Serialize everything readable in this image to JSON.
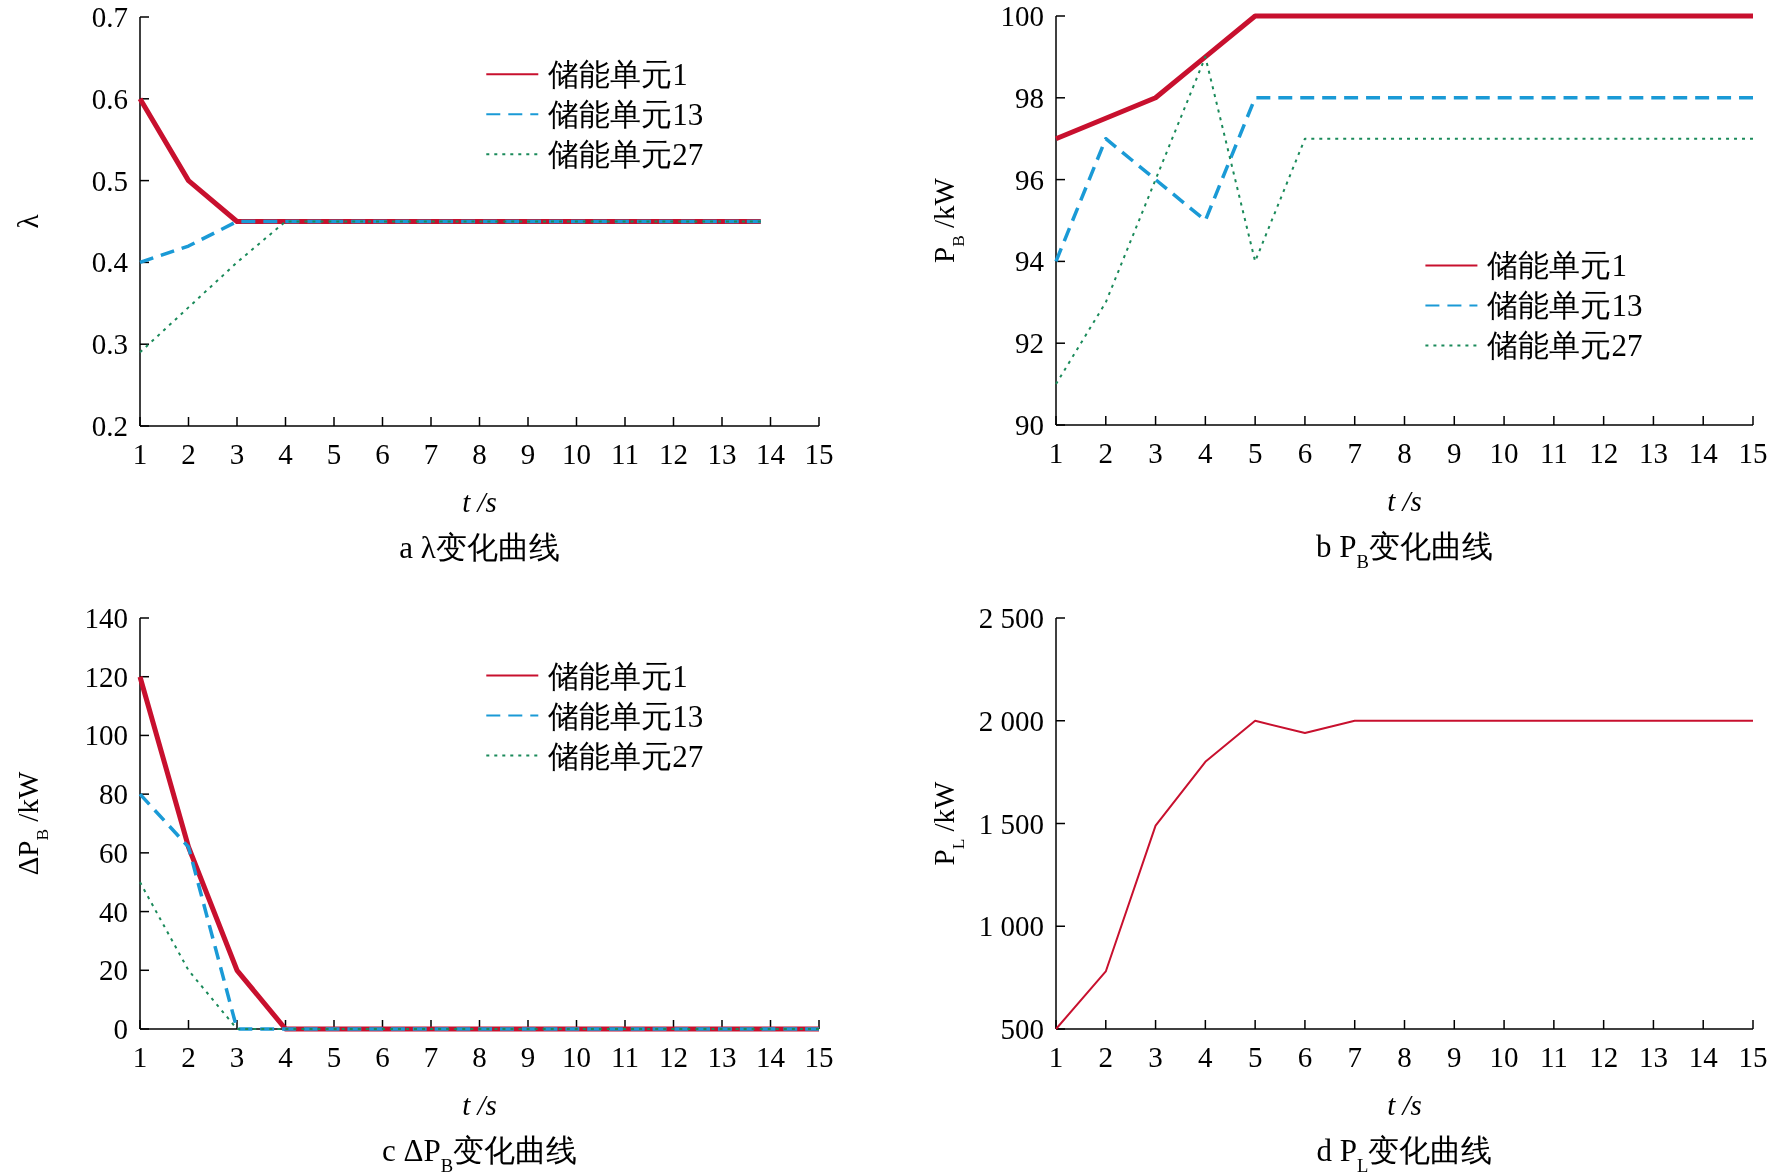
{
  "chart_data": [
    {
      "type": "line",
      "title": "a λ变化曲线",
      "xlabel": "t /s",
      "ylabel": "λ",
      "xlim": [
        1,
        15
      ],
      "xticks": [
        1,
        2,
        3,
        4,
        5,
        6,
        7,
        8,
        9,
        10,
        11,
        12,
        13,
        14,
        15
      ],
      "ylim": [
        0.2,
        0.7
      ],
      "yticks": [
        0.2,
        0.3,
        0.4,
        0.5,
        0.6,
        0.7
      ],
      "legend": "top right",
      "series": [
        {
          "name": "储能单元1",
          "color": "#c8102e",
          "line_style": "solid",
          "x": [
            1,
            2,
            3,
            4,
            13.8
          ],
          "values": [
            0.6,
            0.5,
            0.45,
            0.45,
            0.45
          ]
        },
        {
          "name": "储能单元13",
          "color": "#1a9ad6",
          "line_style": "dashed",
          "x": [
            1,
            2,
            3,
            4,
            13.8
          ],
          "values": [
            0.4,
            0.42,
            0.45,
            0.45,
            0.45
          ]
        },
        {
          "name": "储能单元27",
          "color": "#1a8a5a",
          "line_style": "dotted",
          "x": [
            1,
            2,
            3,
            4,
            13.8
          ],
          "values": [
            0.29,
            0.345,
            0.4,
            0.45,
            0.45
          ]
        }
      ]
    },
    {
      "type": "line",
      "title": "b P$_{B}$变化曲线",
      "xlabel": "t /s",
      "ylabel": "P$_{B}$ /kW",
      "xlim": [
        1,
        15
      ],
      "xticks": [
        1,
        2,
        3,
        4,
        5,
        6,
        7,
        8,
        9,
        10,
        11,
        12,
        13,
        14,
        15
      ],
      "ylim": [
        90,
        100
      ],
      "yticks": [
        90,
        92,
        94,
        96,
        98,
        100
      ],
      "legend": "right",
      "series": [
        {
          "name": "储能单元1",
          "color": "#c8102e",
          "line_style": "solid",
          "x": [
            1,
            2,
            3,
            4,
            5,
            6,
            15
          ],
          "values": [
            97,
            97.5,
            98,
            99,
            100,
            100,
            100
          ]
        },
        {
          "name": "储能单元13",
          "color": "#1a9ad6",
          "line_style": "dashed",
          "x": [
            1,
            2,
            3,
            4,
            5,
            6,
            15
          ],
          "values": [
            94,
            97,
            96,
            95,
            98,
            98,
            98
          ]
        },
        {
          "name": "储能单元27",
          "color": "#1a8a5a",
          "line_style": "dotted",
          "x": [
            1,
            2,
            3,
            4,
            5,
            6,
            15
          ],
          "values": [
            91,
            93,
            96,
            99,
            94,
            97,
            97
          ]
        }
      ]
    },
    {
      "type": "line",
      "title": "c ΔP$_{B}$变化曲线",
      "xlabel": "t /s",
      "ylabel": "ΔP$_{B}$ /kW",
      "xlim": [
        1,
        15
      ],
      "xticks": [
        1,
        2,
        3,
        4,
        5,
        6,
        7,
        8,
        9,
        10,
        11,
        12,
        13,
        14,
        15
      ],
      "ylim": [
        0,
        140
      ],
      "yticks": [
        0,
        20,
        40,
        60,
        80,
        100,
        120,
        140
      ],
      "legend": "top right",
      "series": [
        {
          "name": "储能单元1",
          "color": "#c8102e",
          "line_style": "solid",
          "x": [
            1,
            2,
            3,
            4,
            15
          ],
          "values": [
            120,
            62,
            20,
            0,
            0
          ]
        },
        {
          "name": "储能单元13",
          "color": "#1a9ad6",
          "line_style": "dashed",
          "x": [
            1,
            2,
            3,
            4,
            15
          ],
          "values": [
            80,
            62,
            0,
            0,
            0
          ]
        },
        {
          "name": "储能单元27",
          "color": "#1a8a5a",
          "line_style": "dotted",
          "x": [
            1,
            2,
            3,
            4,
            15
          ],
          "values": [
            50,
            20,
            0,
            0,
            0
          ]
        }
      ]
    },
    {
      "type": "line",
      "title": "d P$_{L}$变化曲线",
      "xlabel": "t /s",
      "ylabel": "P$_{L}$ /kW",
      "xlim": [
        1,
        15
      ],
      "xticks": [
        1,
        2,
        3,
        4,
        5,
        6,
        7,
        8,
        9,
        10,
        11,
        12,
        13,
        14,
        15
      ],
      "ylim": [
        500,
        2500
      ],
      "yticks": [
        500,
        {
          "value": 1000,
          "label": "1 000"
        },
        {
          "value": 1500,
          "label": "1 500"
        },
        {
          "value": 2000,
          "label": "2 000"
        },
        {
          "value": 2500,
          "label": "2 500"
        }
      ],
      "series": [
        {
          "color": "#c8102e",
          "line_style": "solid",
          "x": [
            1,
            2,
            3,
            4,
            5,
            6,
            7,
            8,
            9,
            10,
            15
          ],
          "values": [
            500,
            780,
            1490,
            1800,
            2000,
            1940,
            2000,
            2000,
            2000,
            2000,
            2000
          ]
        }
      ]
    }
  ]
}
